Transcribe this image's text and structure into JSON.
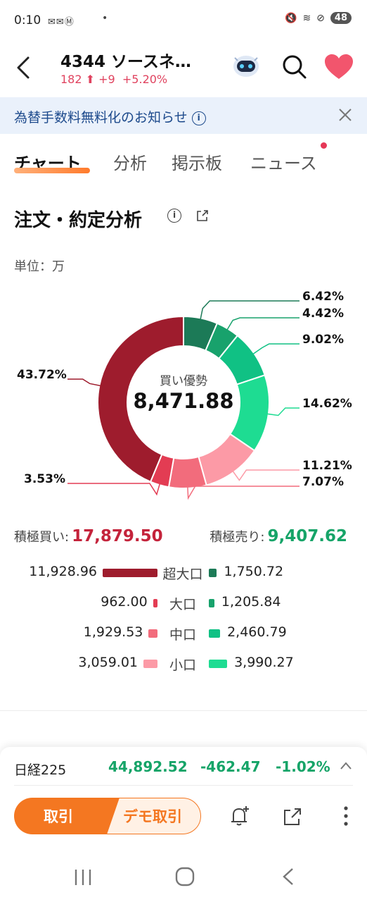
{
  "status_bar": {
    "time": "0:10",
    "battery": "48"
  },
  "header": {
    "title": "4344  ソースネ…",
    "price": "182",
    "change": "+9",
    "change_pct": "+5.20%"
  },
  "notice": {
    "text": "為替手数料無料化のお知らせ"
  },
  "tabs": [
    {
      "label": "チャート",
      "active": true
    },
    {
      "label": "分析",
      "active": false
    },
    {
      "label": "掲示板",
      "active": false
    },
    {
      "label": "ニュース",
      "active": false
    }
  ],
  "section": {
    "title": "注文・約定分析",
    "unit": "単位：万"
  },
  "chart_data": {
    "type": "pie",
    "center_label": "買い優勢",
    "center_value": "8,471.88",
    "slices": [
      {
        "name": "超大口 売り",
        "value": 6.42,
        "label": "6.42%",
        "color": "#1c7a57"
      },
      {
        "name": "大口 売り",
        "value": 4.42,
        "label": "4.42%",
        "color": "#18a26c"
      },
      {
        "name": "中口 売り",
        "value": 9.02,
        "label": "9.02%",
        "color": "#10c184"
      },
      {
        "name": "小口 売り",
        "value": 14.62,
        "label": "14.62%",
        "color": "#1edc92"
      },
      {
        "name": "小口 買い",
        "value": 11.21,
        "label": "11.21%",
        "color": "#fc9aa6"
      },
      {
        "name": "中口 買い",
        "value": 7.07,
        "label": "7.07%",
        "color": "#f26c7c"
      },
      {
        "name": "大口 買い",
        "value": 3.53,
        "label": "3.53%",
        "color": "#e33c53"
      },
      {
        "name": "超大口 買い",
        "value": 43.72,
        "label": "43.72%",
        "color": "#9e1c2d"
      }
    ]
  },
  "summary": {
    "buy_label": "積極買い:",
    "buy_value": "17,879.50",
    "sell_label": "積極売り:",
    "sell_value": "9,407.62"
  },
  "breakdown": [
    {
      "label": "超大口",
      "buy": "11,928.96",
      "buy_num": 11928.96,
      "sell": "1,750.72",
      "sell_num": 1750.72,
      "buy_color": "#9e1c2d",
      "sell_color": "#1c7a57"
    },
    {
      "label": "大口",
      "buy": "962.00",
      "buy_num": 962.0,
      "sell": "1,205.84",
      "sell_num": 1205.84,
      "buy_color": "#e33c53",
      "sell_color": "#18a26c"
    },
    {
      "label": "中口",
      "buy": "1,929.53",
      "buy_num": 1929.53,
      "sell": "2,460.79",
      "sell_num": 2460.79,
      "buy_color": "#f26c7c",
      "sell_color": "#10c184"
    },
    {
      "label": "小口",
      "buy": "3,059.01",
      "buy_num": 3059.01,
      "sell": "3,990.27",
      "sell_num": 3990.27,
      "buy_color": "#fc9aa6",
      "sell_color": "#1edc92"
    }
  ],
  "index": {
    "name": "日経225",
    "value": "44,892.52",
    "change": "-462.47",
    "change_pct": "-1.02%"
  },
  "actions": {
    "trade": "取引",
    "demo": "デモ取引"
  },
  "icons": [
    "back-icon",
    "robot-icon",
    "search-icon",
    "heart-icon",
    "info-icon",
    "close-icon",
    "share-icon",
    "chevron-up-icon",
    "bell-plus-icon",
    "more-icon"
  ],
  "colors": {
    "up": "#e0435f",
    "down": "#16a468",
    "accent": "#f47721"
  }
}
